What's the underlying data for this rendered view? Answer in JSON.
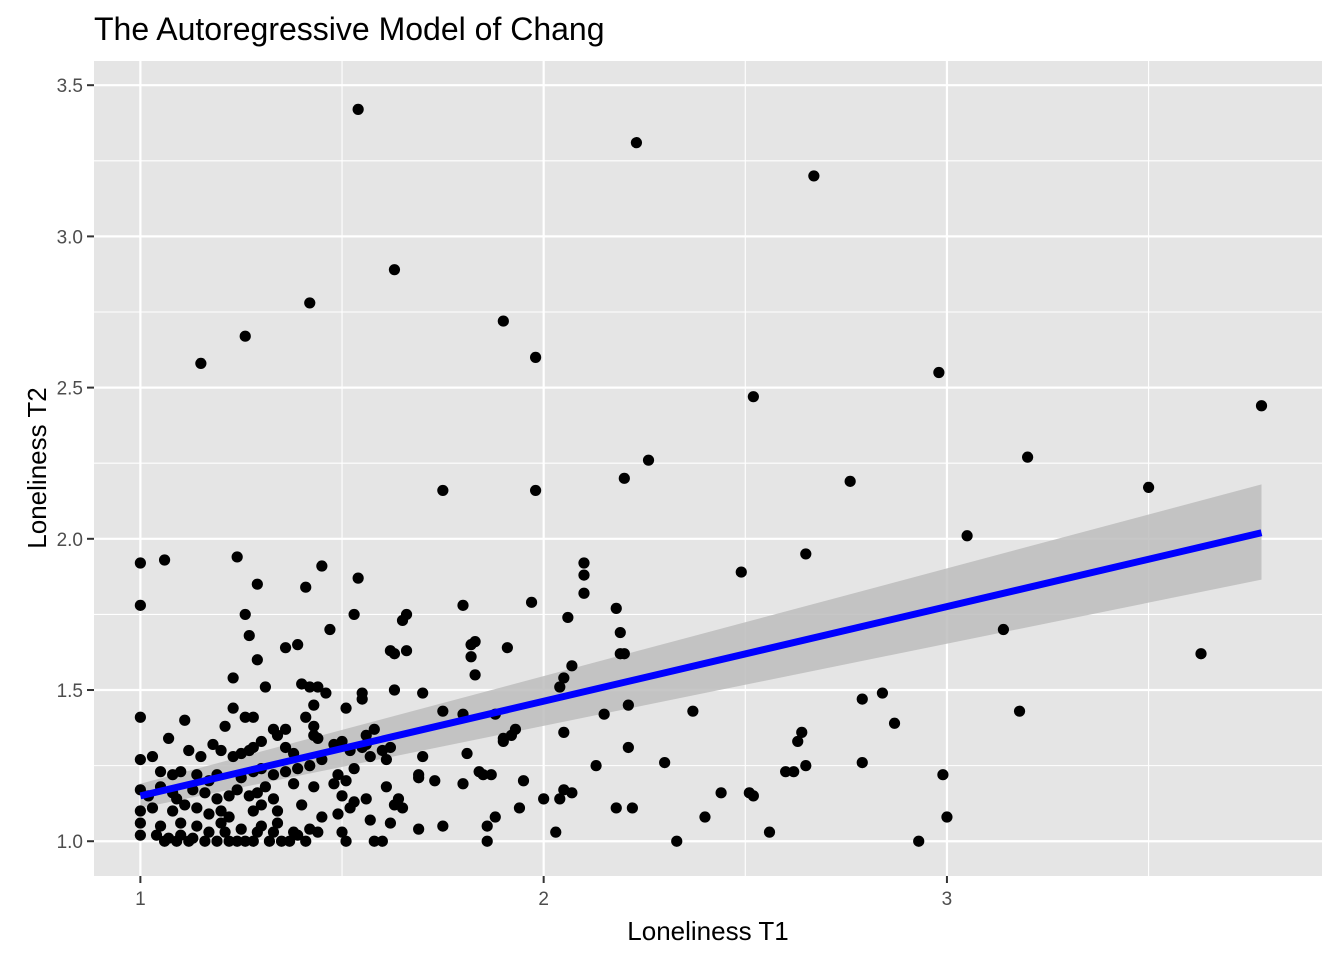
{
  "chart_data": {
    "type": "scatter",
    "title": "The Autoregressive Model of Chang",
    "xlabel": "Loneliness T1",
    "ylabel": "Loneliness T2",
    "xlim": [
      0.885,
      3.93
    ],
    "ylim": [
      0.885,
      3.58
    ],
    "xticks": [
      1,
      2,
      3
    ],
    "xtick_labels": [
      "1",
      "2",
      "3"
    ],
    "xminor": [
      1.5,
      2.5,
      3.5
    ],
    "yticks": [
      1.0,
      1.5,
      2.0,
      2.5,
      3.0,
      3.5
    ],
    "ytick_labels": [
      "1.0",
      "1.5",
      "2.0",
      "2.5",
      "3.0",
      "3.5"
    ],
    "yminor": [
      1.25,
      1.75,
      2.25,
      2.75,
      3.25
    ],
    "grid": true,
    "legend": "none",
    "colors": {
      "panel": "#e5e5e5",
      "grid": "#ffffff",
      "points": "#000000",
      "fit_line": "#0000ff",
      "ribbon": "#bdbdbd"
    },
    "fit": {
      "method": "lm",
      "x": [
        1.0,
        3.78
      ],
      "y": [
        1.15,
        2.02
      ],
      "ci_lower": [
        1.11,
        1.865
      ],
      "ci_upper": [
        1.19,
        2.18
      ]
    },
    "points": [
      [
        1.54,
        3.42
      ],
      [
        2.23,
        3.31
      ],
      [
        2.67,
        3.2
      ],
      [
        1.63,
        2.89
      ],
      [
        1.42,
        2.78
      ],
      [
        1.9,
        2.72
      ],
      [
        1.26,
        2.67
      ],
      [
        1.98,
        2.6
      ],
      [
        1.15,
        2.58
      ],
      [
        2.98,
        2.55
      ],
      [
        2.52,
        2.47
      ],
      [
        3.78,
        2.44
      ],
      [
        2.26,
        2.26
      ],
      [
        3.2,
        2.27
      ],
      [
        2.2,
        2.2
      ],
      [
        2.76,
        2.19
      ],
      [
        3.5,
        2.17
      ],
      [
        1.75,
        2.16
      ],
      [
        1.98,
        2.16
      ],
      [
        3.05,
        2.01
      ],
      [
        1.0,
        1.92
      ],
      [
        1.06,
        1.93
      ],
      [
        1.24,
        1.94
      ],
      [
        1.45,
        1.91
      ],
      [
        2.1,
        1.92
      ],
      [
        2.1,
        1.88
      ],
      [
        2.65,
        1.95
      ],
      [
        2.49,
        1.89
      ],
      [
        1.54,
        1.87
      ],
      [
        1.29,
        1.85
      ],
      [
        1.41,
        1.84
      ],
      [
        1.0,
        1.78
      ],
      [
        1.8,
        1.78
      ],
      [
        1.97,
        1.79
      ],
      [
        2.1,
        1.82
      ],
      [
        2.18,
        1.77
      ],
      [
        1.26,
        1.75
      ],
      [
        1.53,
        1.75
      ],
      [
        1.66,
        1.75
      ],
      [
        1.65,
        1.73
      ],
      [
        2.06,
        1.74
      ],
      [
        1.47,
        1.7
      ],
      [
        1.27,
        1.68
      ],
      [
        1.36,
        1.64
      ],
      [
        1.39,
        1.65
      ],
      [
        1.62,
        1.63
      ],
      [
        1.63,
        1.62
      ],
      [
        1.66,
        1.63
      ],
      [
        1.82,
        1.65
      ],
      [
        1.83,
        1.66
      ],
      [
        1.82,
        1.61
      ],
      [
        1.91,
        1.64
      ],
      [
        2.19,
        1.69
      ],
      [
        2.19,
        1.62
      ],
      [
        2.2,
        1.62
      ],
      [
        3.14,
        1.7
      ],
      [
        3.63,
        1.62
      ],
      [
        1.29,
        1.6
      ],
      [
        1.83,
        1.55
      ],
      [
        2.07,
        1.58
      ],
      [
        2.05,
        1.54
      ],
      [
        1.23,
        1.54
      ],
      [
        1.31,
        1.51
      ],
      [
        1.4,
        1.52
      ],
      [
        1.42,
        1.51
      ],
      [
        1.44,
        1.51
      ],
      [
        1.46,
        1.49
      ],
      [
        1.55,
        1.49
      ],
      [
        1.55,
        1.47
      ],
      [
        1.63,
        1.5
      ],
      [
        1.7,
        1.49
      ],
      [
        2.04,
        1.51
      ],
      [
        1.23,
        1.44
      ],
      [
        1.43,
        1.45
      ],
      [
        1.51,
        1.44
      ],
      [
        1.75,
        1.43
      ],
      [
        1.8,
        1.42
      ],
      [
        1.88,
        1.42
      ],
      [
        2.21,
        1.45
      ],
      [
        2.15,
        1.42
      ],
      [
        2.37,
        1.43
      ],
      [
        2.79,
        1.47
      ],
      [
        2.84,
        1.49
      ],
      [
        2.87,
        1.39
      ],
      [
        3.18,
        1.43
      ],
      [
        1.0,
        1.41
      ],
      [
        1.11,
        1.4
      ],
      [
        1.21,
        1.38
      ],
      [
        1.26,
        1.41
      ],
      [
        1.28,
        1.41
      ],
      [
        1.33,
        1.37
      ],
      [
        1.36,
        1.37
      ],
      [
        1.41,
        1.41
      ],
      [
        1.43,
        1.38
      ],
      [
        1.43,
        1.35
      ],
      [
        1.44,
        1.34
      ],
      [
        1.48,
        1.32
      ],
      [
        1.5,
        1.33
      ],
      [
        1.56,
        1.35
      ],
      [
        1.58,
        1.37
      ],
      [
        1.56,
        1.32
      ],
      [
        1.62,
        1.31
      ],
      [
        1.9,
        1.34
      ],
      [
        1.92,
        1.35
      ],
      [
        1.93,
        1.37
      ],
      [
        2.05,
        1.36
      ],
      [
        2.64,
        1.36
      ],
      [
        1.07,
        1.34
      ],
      [
        1.12,
        1.3
      ],
      [
        1.15,
        1.28
      ],
      [
        1.18,
        1.32
      ],
      [
        1.2,
        1.3
      ],
      [
        1.23,
        1.28
      ],
      [
        1.25,
        1.29
      ],
      [
        1.27,
        1.3
      ],
      [
        1.28,
        1.31
      ],
      [
        1.3,
        1.33
      ],
      [
        1.34,
        1.35
      ],
      [
        1.36,
        1.31
      ],
      [
        1.38,
        1.29
      ],
      [
        1.45,
        1.27
      ],
      [
        1.52,
        1.3
      ],
      [
        1.55,
        1.31
      ],
      [
        1.6,
        1.3
      ],
      [
        1.7,
        1.28
      ],
      [
        1.81,
        1.29
      ],
      [
        1.9,
        1.33
      ],
      [
        2.21,
        1.31
      ],
      [
        2.63,
        1.33
      ],
      [
        1.0,
        1.27
      ],
      [
        1.03,
        1.28
      ],
      [
        1.05,
        1.23
      ],
      [
        1.08,
        1.22
      ],
      [
        1.1,
        1.23
      ],
      [
        1.14,
        1.22
      ],
      [
        1.17,
        1.2
      ],
      [
        1.19,
        1.22
      ],
      [
        1.25,
        1.21
      ],
      [
        1.28,
        1.23
      ],
      [
        1.3,
        1.24
      ],
      [
        1.33,
        1.22
      ],
      [
        1.36,
        1.23
      ],
      [
        1.39,
        1.24
      ],
      [
        1.42,
        1.25
      ],
      [
        1.49,
        1.22
      ],
      [
        1.53,
        1.24
      ],
      [
        1.57,
        1.28
      ],
      [
        1.61,
        1.27
      ],
      [
        1.69,
        1.22
      ],
      [
        1.73,
        1.2
      ],
      [
        1.84,
        1.23
      ],
      [
        1.85,
        1.22
      ],
      [
        1.87,
        1.22
      ],
      [
        2.13,
        1.25
      ],
      [
        2.3,
        1.26
      ],
      [
        2.6,
        1.23
      ],
      [
        2.62,
        1.23
      ],
      [
        2.65,
        1.25
      ],
      [
        2.79,
        1.26
      ],
      [
        2.99,
        1.22
      ],
      [
        1.0,
        1.17
      ],
      [
        1.02,
        1.15
      ],
      [
        1.05,
        1.18
      ],
      [
        1.08,
        1.16
      ],
      [
        1.09,
        1.14
      ],
      [
        1.13,
        1.17
      ],
      [
        1.16,
        1.16
      ],
      [
        1.19,
        1.14
      ],
      [
        1.22,
        1.15
      ],
      [
        1.24,
        1.17
      ],
      [
        1.27,
        1.15
      ],
      [
        1.29,
        1.16
      ],
      [
        1.31,
        1.18
      ],
      [
        1.33,
        1.14
      ],
      [
        1.38,
        1.19
      ],
      [
        1.43,
        1.18
      ],
      [
        1.48,
        1.19
      ],
      [
        1.51,
        1.2
      ],
      [
        1.5,
        1.15
      ],
      [
        1.53,
        1.13
      ],
      [
        1.56,
        1.14
      ],
      [
        1.61,
        1.18
      ],
      [
        1.64,
        1.14
      ],
      [
        1.69,
        1.21
      ],
      [
        1.8,
        1.19
      ],
      [
        1.95,
        1.2
      ],
      [
        2.0,
        1.14
      ],
      [
        2.04,
        1.14
      ],
      [
        2.05,
        1.17
      ],
      [
        2.07,
        1.16
      ],
      [
        2.44,
        1.16
      ],
      [
        2.51,
        1.16
      ],
      [
        2.52,
        1.15
      ],
      [
        1.0,
        1.1
      ],
      [
        1.03,
        1.11
      ],
      [
        1.08,
        1.1
      ],
      [
        1.11,
        1.12
      ],
      [
        1.14,
        1.11
      ],
      [
        1.17,
        1.09
      ],
      [
        1.2,
        1.1
      ],
      [
        1.22,
        1.08
      ],
      [
        1.28,
        1.1
      ],
      [
        1.3,
        1.12
      ],
      [
        1.34,
        1.1
      ],
      [
        1.4,
        1.12
      ],
      [
        1.45,
        1.08
      ],
      [
        1.49,
        1.09
      ],
      [
        1.52,
        1.11
      ],
      [
        1.63,
        1.12
      ],
      [
        1.65,
        1.11
      ],
      [
        1.88,
        1.08
      ],
      [
        1.94,
        1.11
      ],
      [
        2.18,
        1.11
      ],
      [
        2.22,
        1.11
      ],
      [
        2.4,
        1.08
      ],
      [
        3.0,
        1.08
      ],
      [
        1.0,
        1.06
      ],
      [
        1.05,
        1.05
      ],
      [
        1.1,
        1.06
      ],
      [
        1.14,
        1.05
      ],
      [
        1.2,
        1.06
      ],
      [
        1.25,
        1.04
      ],
      [
        1.3,
        1.05
      ],
      [
        1.34,
        1.06
      ],
      [
        1.38,
        1.03
      ],
      [
        1.42,
        1.04
      ],
      [
        1.44,
        1.03
      ],
      [
        1.5,
        1.03
      ],
      [
        1.57,
        1.07
      ],
      [
        1.62,
        1.06
      ],
      [
        1.69,
        1.04
      ],
      [
        1.75,
        1.05
      ],
      [
        1.86,
        1.05
      ],
      [
        2.03,
        1.03
      ],
      [
        2.56,
        1.03
      ],
      [
        1.0,
        1.02
      ],
      [
        1.04,
        1.02
      ],
      [
        1.07,
        1.01
      ],
      [
        1.1,
        1.02
      ],
      [
        1.13,
        1.01
      ],
      [
        1.16,
        1.0
      ],
      [
        1.19,
        1.0
      ],
      [
        1.22,
        1.0
      ],
      [
        1.24,
        1.0
      ],
      [
        1.26,
        1.0
      ],
      [
        1.28,
        1.0
      ],
      [
        1.32,
        1.0
      ],
      [
        1.35,
        1.0
      ],
      [
        1.37,
        1.0
      ],
      [
        1.41,
        1.0
      ],
      [
        1.51,
        1.0
      ],
      [
        1.58,
        1.0
      ],
      [
        1.6,
        1.0
      ],
      [
        1.86,
        1.0
      ],
      [
        2.33,
        1.0
      ],
      [
        2.93,
        1.0
      ],
      [
        1.06,
        1.0
      ],
      [
        1.09,
        1.0
      ],
      [
        1.12,
        1.0
      ],
      [
        1.17,
        1.03
      ],
      [
        1.21,
        1.03
      ],
      [
        1.29,
        1.03
      ],
      [
        1.33,
        1.03
      ],
      [
        1.39,
        1.02
      ]
    ]
  }
}
